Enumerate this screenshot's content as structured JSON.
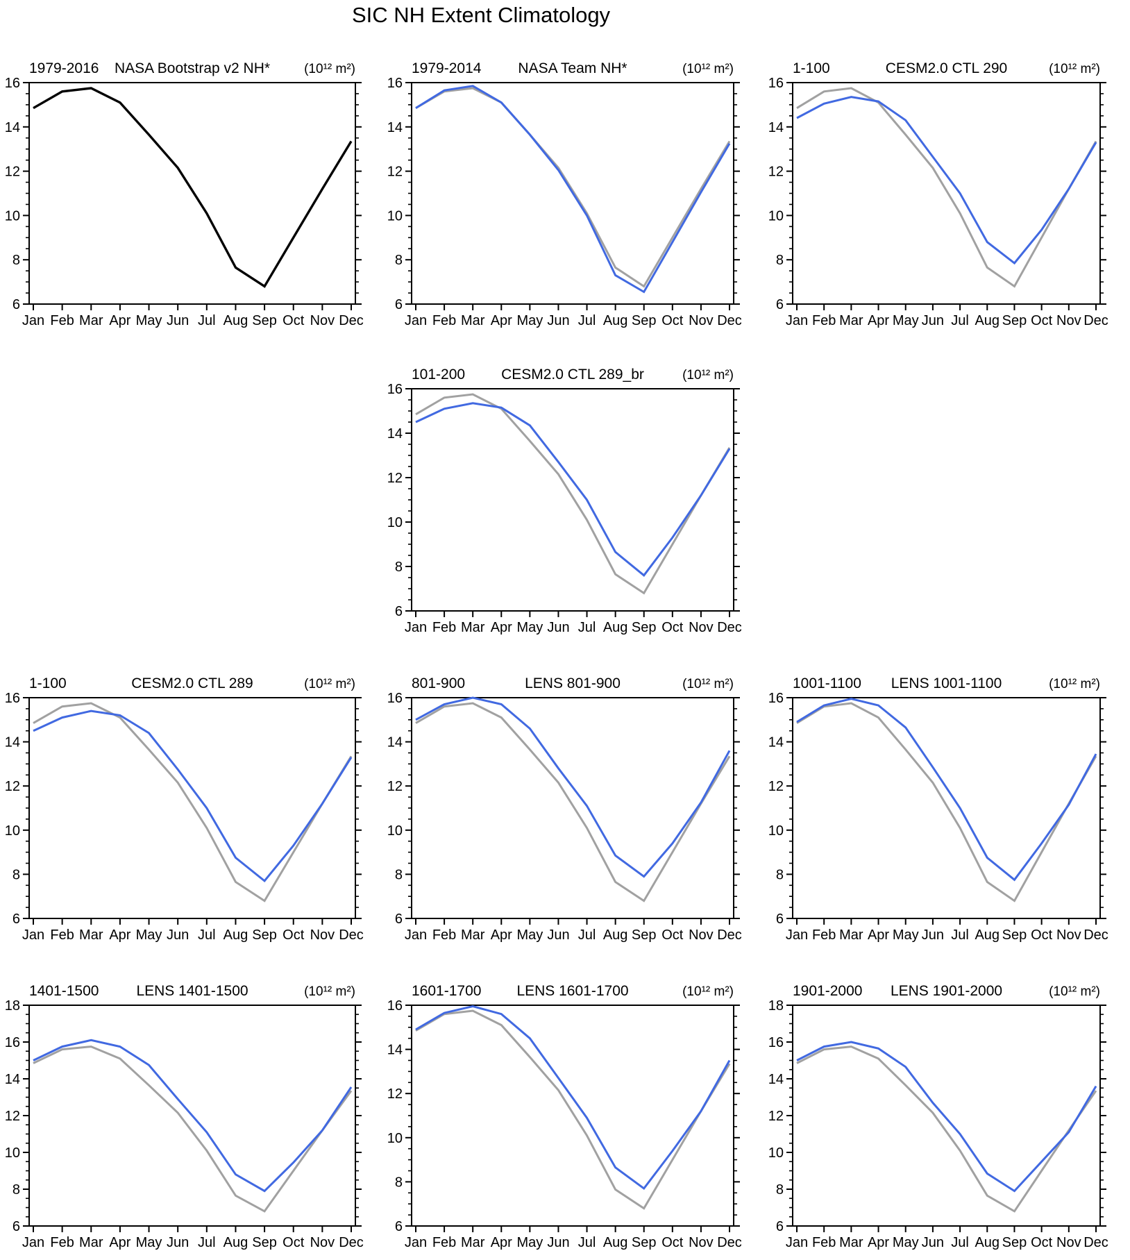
{
  "figure": {
    "title": "SIC NH Extent Climatology",
    "background": "#ffffff"
  },
  "colors": {
    "observation_gray": "#A1A1A1",
    "model_blue": "#4169E1",
    "bootstrap_black": "#000000",
    "axis": "#000000"
  },
  "chart_data": {
    "type": "line",
    "months": [
      "Jan",
      "Feb",
      "Mar",
      "Apr",
      "May",
      "Jun",
      "Jul",
      "Aug",
      "Sep",
      "Oct",
      "Nov",
      "Dec"
    ],
    "unit_label": "(10¹² m²)",
    "grid": "off",
    "legend": "none",
    "reference_series": {
      "key": "reference",
      "name": "NASA Bootstrap v2 NH*",
      "color": "#A1A1A1",
      "values": [
        14.85,
        15.6,
        15.75,
        15.1,
        13.65,
        12.15,
        10.1,
        7.65,
        6.8,
        9.0,
        11.2,
        13.35
      ]
    },
    "panels": [
      {
        "id": "nasa-bootstrap-v2",
        "grid_pos": [
          1,
          1
        ],
        "title_left": "1979-2016",
        "title_center": "NASA Bootstrap v2 NH*",
        "title_right": "(10¹² m²)",
        "ylim": [
          6,
          16
        ],
        "ytick_step": 2,
        "yminor_step": 0.5,
        "show_reference": false,
        "series": [
          {
            "key": "bootstrap",
            "name": "NASA Bootstrap v2 NH*",
            "color": "#000000",
            "values": [
              14.85,
              15.6,
              15.75,
              15.1,
              13.65,
              12.15,
              10.1,
              7.65,
              6.8,
              9.0,
              11.2,
              13.35
            ]
          }
        ]
      },
      {
        "id": "nasa-team",
        "grid_pos": [
          1,
          2
        ],
        "title_left": "1979-2014",
        "title_center": "NASA Team NH*",
        "title_right": "(10¹² m²)",
        "ylim": [
          6,
          16
        ],
        "ytick_step": 2,
        "yminor_step": 0.5,
        "show_reference": true,
        "series": [
          {
            "key": "model",
            "name": "NASA Team NH*",
            "color": "#4169E1",
            "values": [
              14.85,
              15.65,
              15.85,
              15.1,
              13.65,
              12.05,
              10.0,
              7.3,
              6.55,
              8.8,
              11.05,
              13.25
            ]
          }
        ]
      },
      {
        "id": "cesm2-ctl-290",
        "grid_pos": [
          1,
          3
        ],
        "title_left": "1-100",
        "title_center": "CESM2.0 CTL 290",
        "title_right": "(10¹² m²)",
        "ylim": [
          6,
          16
        ],
        "ytick_step": 2,
        "yminor_step": 0.5,
        "show_reference": true,
        "series": [
          {
            "key": "model",
            "name": "CESM2.0 CTL 290",
            "color": "#4169E1",
            "values": [
              14.4,
              15.05,
              15.35,
              15.15,
              14.3,
              12.65,
              11.0,
              8.8,
              7.85,
              9.35,
              11.2,
              13.3
            ]
          }
        ]
      },
      {
        "id": "cesm2-ctl-289br",
        "grid_pos": [
          2,
          2
        ],
        "title_left": "101-200",
        "title_center": "CESM2.0 CTL 289_br",
        "title_right": "(10¹² m²)",
        "ylim": [
          6,
          16
        ],
        "ytick_step": 2,
        "yminor_step": 0.5,
        "show_reference": true,
        "series": [
          {
            "key": "model",
            "name": "CESM2.0 CTL 289_br",
            "color": "#4169E1",
            "values": [
              14.5,
              15.1,
              15.35,
              15.15,
              14.35,
              12.7,
              11.0,
              8.65,
              7.6,
              9.3,
              11.2,
              13.3
            ]
          }
        ]
      },
      {
        "id": "cesm2-ctl-289",
        "grid_pos": [
          3,
          1
        ],
        "title_left": "1-100",
        "title_center": "CESM2.0 CTL 289",
        "title_right": "(10¹² m²)",
        "ylim": [
          6,
          16
        ],
        "ytick_step": 2,
        "yminor_step": 0.5,
        "show_reference": true,
        "series": [
          {
            "key": "model",
            "name": "CESM2.0 CTL 289",
            "color": "#4169E1",
            "values": [
              14.5,
              15.1,
              15.4,
              15.2,
              14.4,
              12.75,
              11.0,
              8.75,
              7.7,
              9.3,
              11.2,
              13.3
            ]
          }
        ]
      },
      {
        "id": "lens-801-900",
        "grid_pos": [
          3,
          2
        ],
        "title_left": "801-900",
        "title_center": "LENS 801-900",
        "title_right": "(10¹² m²)",
        "ylim": [
          6,
          16
        ],
        "ytick_step": 2,
        "yminor_step": 0.5,
        "show_reference": true,
        "series": [
          {
            "key": "model",
            "name": "LENS 801-900",
            "color": "#4169E1",
            "values": [
              15.0,
              15.7,
              16.0,
              15.7,
              14.6,
              12.8,
              11.1,
              8.85,
              7.9,
              9.4,
              11.25,
              13.6
            ]
          }
        ]
      },
      {
        "id": "lens-1001-1100",
        "grid_pos": [
          3,
          3
        ],
        "title_left": "1001-1100",
        "title_center": "LENS 1001-1100",
        "title_right": "(10¹² m²)",
        "ylim": [
          6,
          16
        ],
        "ytick_step": 2,
        "yminor_step": 0.5,
        "show_reference": true,
        "series": [
          {
            "key": "model",
            "name": "LENS 1001-1100",
            "color": "#4169E1",
            "values": [
              14.9,
              15.65,
              15.95,
              15.65,
              14.65,
              12.85,
              11.0,
              8.75,
              7.75,
              9.4,
              11.15,
              13.45
            ]
          }
        ]
      },
      {
        "id": "lens-1401-1500",
        "grid_pos": [
          4,
          1
        ],
        "title_left": "1401-1500",
        "title_center": "LENS 1401-1500",
        "title_right": "(10¹² m²)",
        "ylim": [
          6,
          18
        ],
        "ytick_step": 2,
        "yminor_step": 0.5,
        "show_reference": true,
        "series": [
          {
            "key": "model",
            "name": "LENS 1401-1500",
            "color": "#4169E1",
            "values": [
              15.0,
              15.75,
              16.1,
              15.75,
              14.75,
              12.9,
              11.1,
              8.8,
              7.9,
              9.45,
              11.2,
              13.55
            ]
          }
        ]
      },
      {
        "id": "lens-1601-1700",
        "grid_pos": [
          4,
          2
        ],
        "title_left": "1601-1700",
        "title_center": "LENS 1601-1700",
        "title_right": "(10¹² m²)",
        "ylim": [
          6,
          16
        ],
        "ytick_step": 2,
        "yminor_step": 0.5,
        "show_reference": true,
        "series": [
          {
            "key": "model",
            "name": "LENS 1601-1700",
            "color": "#4169E1",
            "values": [
              14.9,
              15.65,
              15.95,
              15.6,
              14.5,
              12.7,
              10.9,
              8.65,
              7.7,
              9.4,
              11.2,
              13.5
            ]
          }
        ]
      },
      {
        "id": "lens-1901-2000",
        "grid_pos": [
          4,
          3
        ],
        "title_left": "1901-2000",
        "title_center": "LENS 1901-2000",
        "title_right": "(10¹² m²)",
        "ylim": [
          6,
          18
        ],
        "ytick_step": 2,
        "yminor_step": 0.5,
        "show_reference": true,
        "series": [
          {
            "key": "model",
            "name": "LENS 1901-2000",
            "color": "#4169E1",
            "values": [
              15.0,
              15.75,
              16.0,
              15.65,
              14.65,
              12.7,
              11.0,
              8.85,
              7.9,
              9.5,
              11.1,
              13.6
            ]
          }
        ]
      }
    ]
  }
}
